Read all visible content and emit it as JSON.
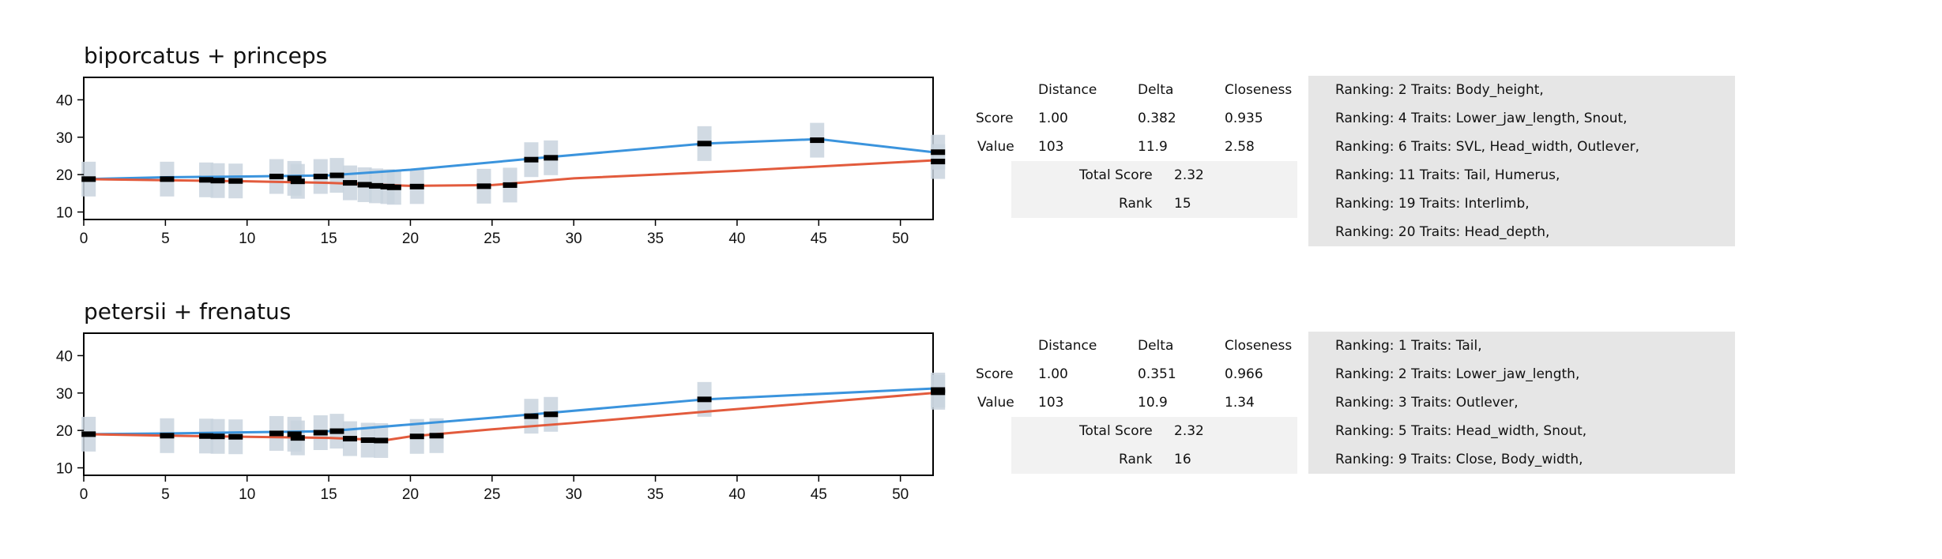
{
  "colors": {
    "blue": "#3b94dd",
    "orange": "#e25b3d",
    "band": "#c9d3de",
    "marker": "#000000"
  },
  "chart_data": [
    {
      "type": "line",
      "title": "biporcatus + princeps",
      "xlim": [
        0,
        52
      ],
      "ylim": [
        8,
        46
      ],
      "xticks": [
        0,
        5,
        10,
        15,
        20,
        25,
        30,
        35,
        40,
        45,
        50
      ],
      "yticks": [
        10,
        20,
        30,
        40
      ],
      "grid": false,
      "series": [
        {
          "color": "blue",
          "x": [
            0,
            5,
            10,
            15,
            20,
            27.5,
            38,
            45,
            52
          ],
          "y": [
            18.8,
            19.3,
            19.5,
            19.8,
            21.3,
            24.3,
            28.3,
            29.5,
            26
          ]
        },
        {
          "color": "orange",
          "x": [
            0,
            5,
            10,
            15,
            20,
            25,
            30,
            40,
            52
          ],
          "y": [
            18.8,
            18.5,
            18.2,
            17.8,
            17,
            17.2,
            19,
            21,
            23.8
          ]
        }
      ],
      "markers": [
        {
          "x": 0.3,
          "y": 18.8
        },
        {
          "x": 5.1,
          "y": 18.8
        },
        {
          "x": 7.5,
          "y": 18.6
        },
        {
          "x": 8.2,
          "y": 18.4
        },
        {
          "x": 9.3,
          "y": 18.3
        },
        {
          "x": 11.8,
          "y": 19.5
        },
        {
          "x": 12.9,
          "y": 19.0
        },
        {
          "x": 13.1,
          "y": 18.2
        },
        {
          "x": 14.5,
          "y": 19.5
        },
        {
          "x": 15.5,
          "y": 19.8
        },
        {
          "x": 16.3,
          "y": 17.8
        },
        {
          "x": 17.2,
          "y": 17.3
        },
        {
          "x": 17.9,
          "y": 17.0
        },
        {
          "x": 18.6,
          "y": 16.8
        },
        {
          "x": 19.0,
          "y": 16.6
        },
        {
          "x": 20.4,
          "y": 16.8
        },
        {
          "x": 24.5,
          "y": 16.9
        },
        {
          "x": 26.1,
          "y": 17.2
        },
        {
          "x": 27.4,
          "y": 24.0
        },
        {
          "x": 28.6,
          "y": 24.5
        },
        {
          "x": 38.0,
          "y": 28.3
        },
        {
          "x": 44.9,
          "y": 29.2
        },
        {
          "x": 52.3,
          "y": 26.0
        },
        {
          "x": 52.3,
          "y": 23.5
        }
      ]
    },
    {
      "type": "line",
      "title": "petersii + frenatus",
      "xlim": [
        0,
        52
      ],
      "ylim": [
        8,
        46
      ],
      "xticks": [
        0,
        5,
        10,
        15,
        20,
        25,
        30,
        35,
        40,
        45,
        50
      ],
      "yticks": [
        10,
        20,
        30,
        40
      ],
      "grid": false,
      "series": [
        {
          "color": "blue",
          "x": [
            0,
            5,
            10,
            15,
            20,
            27.5,
            38,
            52
          ],
          "y": [
            19,
            19.2,
            19.5,
            19.8,
            21.6,
            24.3,
            28.3,
            31.2
          ]
        },
        {
          "color": "orange",
          "x": [
            0,
            5,
            10,
            15,
            18.5,
            20,
            25,
            30,
            38,
            52
          ],
          "y": [
            19,
            18.6,
            18.3,
            18,
            17.4,
            18.4,
            20.3,
            22,
            25,
            30
          ]
        }
      ],
      "markers": [
        {
          "x": 0.3,
          "y": 19.0
        },
        {
          "x": 5.1,
          "y": 18.6
        },
        {
          "x": 7.5,
          "y": 18.5
        },
        {
          "x": 8.2,
          "y": 18.4
        },
        {
          "x": 9.3,
          "y": 18.3
        },
        {
          "x": 11.8,
          "y": 19.2
        },
        {
          "x": 12.9,
          "y": 19.0
        },
        {
          "x": 13.1,
          "y": 18.0
        },
        {
          "x": 14.5,
          "y": 19.4
        },
        {
          "x": 15.5,
          "y": 19.8
        },
        {
          "x": 16.3,
          "y": 17.8
        },
        {
          "x": 17.4,
          "y": 17.4
        },
        {
          "x": 18.2,
          "y": 17.3
        },
        {
          "x": 20.4,
          "y": 18.4
        },
        {
          "x": 21.6,
          "y": 18.6
        },
        {
          "x": 27.4,
          "y": 23.8
        },
        {
          "x": 28.6,
          "y": 24.3
        },
        {
          "x": 38.0,
          "y": 28.3
        },
        {
          "x": 52.3,
          "y": 30.8
        },
        {
          "x": 52.3,
          "y": 30.2
        }
      ]
    }
  ],
  "panels": [
    {
      "stats": {
        "headers": [
          "Distance",
          "Delta",
          "Closeness"
        ],
        "rows": [
          {
            "label": "Score",
            "values": [
              "1.00",
              "0.382",
              "0.935"
            ]
          },
          {
            "label": "Value",
            "values": [
              "103",
              "11.9",
              "2.58"
            ]
          }
        ],
        "total_score_label": "Total Score",
        "total_score": "2.32",
        "rank_label": "Rank",
        "rank": "15"
      },
      "rankings": [
        "Ranking: 2 Traits: Body_height,",
        "Ranking: 4 Traits: Lower_jaw_length, Snout,",
        "Ranking: 6 Traits: SVL, Head_width, Outlever,",
        "Ranking: 11 Traits: Tail, Humerus,",
        "Ranking: 19 Traits: Interlimb,",
        "Ranking: 20 Traits: Head_depth,"
      ]
    },
    {
      "stats": {
        "headers": [
          "Distance",
          "Delta",
          "Closeness"
        ],
        "rows": [
          {
            "label": "Score",
            "values": [
              "1.00",
              "0.351",
              "0.966"
            ]
          },
          {
            "label": "Value",
            "values": [
              "103",
              "10.9",
              "1.34"
            ]
          }
        ],
        "total_score_label": "Total Score",
        "total_score": "2.32",
        "rank_label": "Rank",
        "rank": "16"
      },
      "rankings": [
        "Ranking: 1 Traits: Tail,",
        "Ranking: 2 Traits: Lower_jaw_length,",
        "Ranking: 3 Traits: Outlever,",
        "Ranking: 5 Traits: Head_width, Snout,",
        "Ranking: 9 Traits: Close, Body_width,"
      ]
    }
  ]
}
